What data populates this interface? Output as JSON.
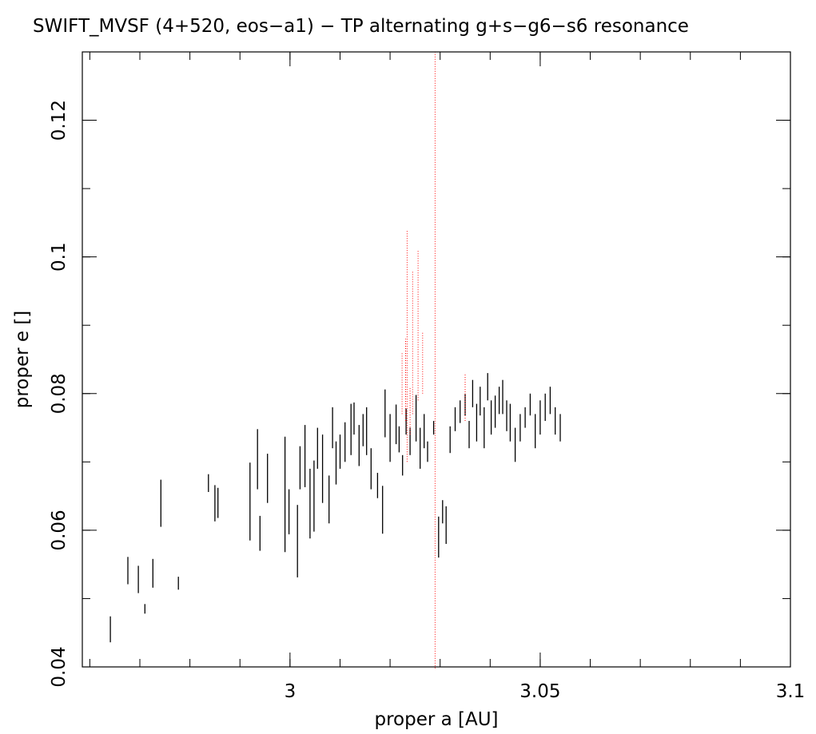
{
  "chart_data": {
    "type": "scatter",
    "title": "SWIFT_MVSF (4+520, eos−a1) − TP alternating g+s−g6−s6 resonance",
    "xlabel": "proper a [AU]",
    "ylabel": "proper e []",
    "xlim": [
      2.9585,
      3.1
    ],
    "ylim": [
      0.04,
      0.13
    ],
    "x_ticks": [
      3.0,
      3.05,
      3.1
    ],
    "x_tick_labels": [
      "3",
      "3.05",
      "3.1"
    ],
    "y_ticks": [
      0.04,
      0.06,
      0.08,
      0.1,
      0.12
    ],
    "y_tick_labels": [
      "0.04",
      "0.06",
      "0.08",
      "0.1",
      "0.12"
    ],
    "grid": false,
    "legend": "none",
    "colors": {
      "background": "#ffffff",
      "axes": "#000000",
      "black_series": "#000000",
      "red_series": "#ff0000"
    },
    "series": [
      {
        "color": "#000000",
        "marker": "vertical-segment",
        "segments": [
          [
            2.9641,
            0.0436,
            0.0474
          ],
          [
            2.9676,
            0.0521,
            0.0561
          ],
          [
            2.9697,
            0.0508,
            0.0548
          ],
          [
            2.971,
            0.0478,
            0.0492
          ],
          [
            2.9726,
            0.0516,
            0.0558
          ],
          [
            2.9742,
            0.0605,
            0.0674
          ],
          [
            2.9777,
            0.0513,
            0.0532
          ],
          [
            2.9837,
            0.0656,
            0.0682
          ],
          [
            2.985,
            0.0613,
            0.0666
          ],
          [
            2.9856,
            0.0618,
            0.0662
          ],
          [
            2.992,
            0.0585,
            0.0699
          ],
          [
            2.9935,
            0.066,
            0.0748
          ],
          [
            2.994,
            0.057,
            0.0621
          ],
          [
            2.9955,
            0.064,
            0.0712
          ],
          [
            2.999,
            0.0568,
            0.0737
          ],
          [
            2.9998,
            0.0594,
            0.066
          ],
          [
            3.0015,
            0.0531,
            0.0637
          ],
          [
            3.002,
            0.066,
            0.0723
          ],
          [
            3.003,
            0.0663,
            0.0754
          ],
          [
            3.004,
            0.0588,
            0.069
          ],
          [
            3.0048,
            0.0598,
            0.0702
          ],
          [
            3.0055,
            0.069,
            0.075
          ],
          [
            3.0065,
            0.064,
            0.074
          ],
          [
            3.0078,
            0.061,
            0.068
          ],
          [
            3.0085,
            0.072,
            0.078
          ],
          [
            3.0092,
            0.0667,
            0.073
          ],
          [
            3.01,
            0.069,
            0.074
          ],
          [
            3.011,
            0.07,
            0.0758
          ],
          [
            3.0122,
            0.071,
            0.0785
          ],
          [
            3.0128,
            0.074,
            0.0787
          ],
          [
            3.0138,
            0.0694,
            0.0754
          ],
          [
            3.0146,
            0.0723,
            0.077
          ],
          [
            3.0153,
            0.071,
            0.078
          ],
          [
            3.0162,
            0.066,
            0.072
          ],
          [
            3.0175,
            0.0647,
            0.0684
          ],
          [
            3.0185,
            0.0595,
            0.0665
          ],
          [
            3.019,
            0.0736,
            0.0806
          ],
          [
            3.02,
            0.07,
            0.077
          ],
          [
            3.0212,
            0.0726,
            0.0784
          ],
          [
            3.0218,
            0.0714,
            0.0752
          ],
          [
            3.0225,
            0.068,
            0.071
          ],
          [
            3.0232,
            0.074,
            0.0778
          ],
          [
            3.024,
            0.071,
            0.075
          ],
          [
            3.0252,
            0.073,
            0.0798
          ],
          [
            3.026,
            0.069,
            0.075
          ],
          [
            3.0268,
            0.072,
            0.077
          ],
          [
            3.0275,
            0.07,
            0.073
          ],
          [
            3.0287,
            0.074,
            0.076
          ],
          [
            3.0297,
            0.056,
            0.062
          ],
          [
            3.0305,
            0.061,
            0.0644
          ],
          [
            3.0312,
            0.058,
            0.0635
          ],
          [
            3.032,
            0.0713,
            0.0752
          ],
          [
            3.033,
            0.0745,
            0.078
          ],
          [
            3.034,
            0.0757,
            0.079
          ],
          [
            3.035,
            0.0768,
            0.08
          ],
          [
            3.0358,
            0.072,
            0.076
          ],
          [
            3.0365,
            0.078,
            0.082
          ],
          [
            3.0373,
            0.073,
            0.0785
          ],
          [
            3.038,
            0.0768,
            0.081
          ],
          [
            3.0388,
            0.072,
            0.078
          ],
          [
            3.0395,
            0.079,
            0.083
          ],
          [
            3.0402,
            0.074,
            0.079
          ],
          [
            3.041,
            0.075,
            0.0797
          ],
          [
            3.0418,
            0.077,
            0.081
          ],
          [
            3.0425,
            0.077,
            0.082
          ],
          [
            3.0433,
            0.0745,
            0.079
          ],
          [
            3.044,
            0.073,
            0.0785
          ],
          [
            3.045,
            0.07,
            0.075
          ],
          [
            3.046,
            0.073,
            0.077
          ],
          [
            3.047,
            0.075,
            0.078
          ],
          [
            3.048,
            0.0768,
            0.08
          ],
          [
            3.049,
            0.072,
            0.077
          ],
          [
            3.05,
            0.074,
            0.079
          ],
          [
            3.051,
            0.076,
            0.08
          ],
          [
            3.052,
            0.077,
            0.081
          ],
          [
            3.053,
            0.074,
            0.078
          ],
          [
            3.054,
            0.073,
            0.077
          ]
        ]
      },
      {
        "color": "#ff0000",
        "marker": "dotted-trail",
        "segments": [
          [
            3.029,
            0.0398,
            0.13
          ],
          [
            3.0234,
            0.07,
            0.104
          ],
          [
            3.0224,
            0.077,
            0.086
          ],
          [
            3.0231,
            0.076,
            0.088
          ],
          [
            3.024,
            0.074,
            0.081
          ],
          [
            3.0245,
            0.077,
            0.098
          ],
          [
            3.0256,
            0.079,
            0.101
          ],
          [
            3.0265,
            0.08,
            0.089
          ],
          [
            3.035,
            0.076,
            0.083
          ]
        ]
      }
    ]
  }
}
